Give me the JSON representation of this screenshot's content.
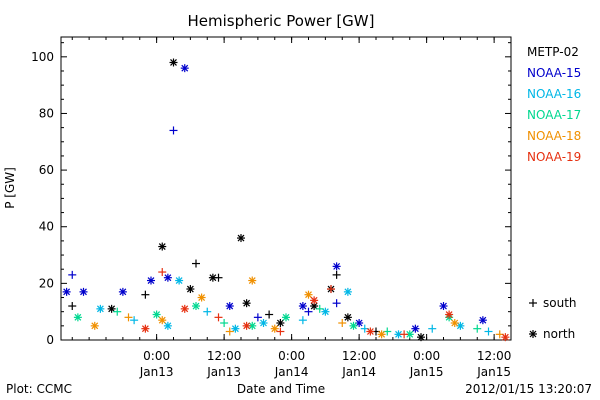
{
  "chart_data": {
    "type": "scatter",
    "title": "Hemispheric Power [GW]",
    "ylabel": "P [GW]",
    "xlabel": "Date and Time",
    "ylim": [
      0,
      107
    ],
    "xlim": [
      "2012-01-12 07:00",
      "2012-01-15 15:00"
    ],
    "y_ticks": [
      0,
      20,
      40,
      60,
      80,
      100
    ],
    "x_ticks": [
      {
        "t": "2012-01-13 00:00",
        "time": "0:00",
        "date": "Jan13"
      },
      {
        "t": "2012-01-13 12:00",
        "time": "12:00",
        "date": "Jan13"
      },
      {
        "t": "2012-01-14 00:00",
        "time": "0:00",
        "date": "Jan14"
      },
      {
        "t": "2012-01-14 12:00",
        "time": "12:00",
        "date": "Jan14"
      },
      {
        "t": "2012-01-15 00:00",
        "time": "0:00",
        "date": "Jan15"
      },
      {
        "t": "2012-01-15 12:00",
        "time": "12:00",
        "date": "Jan15"
      }
    ],
    "grid": false,
    "legend_position": "right",
    "marker_legend": [
      {
        "marker": "+",
        "label": "south"
      },
      {
        "marker": "*",
        "label": "north"
      }
    ],
    "series": [
      {
        "name": "METP-02",
        "color": "#000000",
        "points": [
          {
            "t": "2012-01-13 03:00",
            "y": 98,
            "m": "*"
          },
          {
            "t": "2012-01-13 01:00",
            "y": 33,
            "m": "*"
          },
          {
            "t": "2012-01-13 15:00",
            "y": 36,
            "m": "*"
          },
          {
            "t": "2012-01-13 07:00",
            "y": 27,
            "m": "+"
          },
          {
            "t": "2012-01-13 10:00",
            "y": 22,
            "m": "*"
          },
          {
            "t": "2012-01-13 11:00",
            "y": 22,
            "m": "+"
          },
          {
            "t": "2012-01-13 06:00",
            "y": 18,
            "m": "*"
          },
          {
            "t": "2012-01-12 22:00",
            "y": 16,
            "m": "+"
          },
          {
            "t": "2012-01-12 16:00",
            "y": 11,
            "m": "*"
          },
          {
            "t": "2012-01-13 16:00",
            "y": 13,
            "m": "*"
          },
          {
            "t": "2012-01-14 07:00",
            "y": 18,
            "m": "*"
          },
          {
            "t": "2012-01-14 08:00",
            "y": 23,
            "m": "+"
          },
          {
            "t": "2012-01-14 10:00",
            "y": 8,
            "m": "*"
          },
          {
            "t": "2012-01-13 20:00",
            "y": 9,
            "m": "+"
          },
          {
            "t": "2012-01-14 04:00",
            "y": 12,
            "m": "*"
          },
          {
            "t": "2012-01-14 23:00",
            "y": 1,
            "m": "*"
          },
          {
            "t": "2012-01-14 15:00",
            "y": 3,
            "m": "+"
          },
          {
            "t": "2012-01-12 09:00",
            "y": 12,
            "m": "+"
          },
          {
            "t": "2012-01-13 22:00",
            "y": 6,
            "m": "*"
          }
        ]
      },
      {
        "name": "NOAA-15",
        "color": "#0000cc",
        "points": [
          {
            "t": "2012-01-13 05:00",
            "y": 96,
            "m": "*"
          },
          {
            "t": "2012-01-13 03:00",
            "y": 74,
            "m": "+"
          },
          {
            "t": "2012-01-12 08:00",
            "y": 17,
            "m": "*"
          },
          {
            "t": "2012-01-12 09:00",
            "y": 23,
            "m": "+"
          },
          {
            "t": "2012-01-12 11:00",
            "y": 17,
            "m": "*"
          },
          {
            "t": "2012-01-12 18:00",
            "y": 17,
            "m": "*"
          },
          {
            "t": "2012-01-12 23:00",
            "y": 21,
            "m": "*"
          },
          {
            "t": "2012-01-13 02:00",
            "y": 22,
            "m": "*"
          },
          {
            "t": "2012-01-13 13:00",
            "y": 12,
            "m": "*"
          },
          {
            "t": "2012-01-14 02:00",
            "y": 12,
            "m": "*"
          },
          {
            "t": "2012-01-14 08:00",
            "y": 26,
            "m": "*"
          },
          {
            "t": "2012-01-14 08:00",
            "y": 13,
            "m": "+"
          },
          {
            "t": "2012-01-14 12:00",
            "y": 6,
            "m": "*"
          },
          {
            "t": "2012-01-15 03:00",
            "y": 12,
            "m": "*"
          },
          {
            "t": "2012-01-15 10:00",
            "y": 7,
            "m": "*"
          },
          {
            "t": "2012-01-14 22:00",
            "y": 4,
            "m": "*"
          },
          {
            "t": "2012-01-13 18:00",
            "y": 8,
            "m": "+"
          },
          {
            "t": "2012-01-14 03:00",
            "y": 10,
            "m": "+"
          }
        ]
      },
      {
        "name": "NOAA-16",
        "color": "#00b7e6",
        "points": [
          {
            "t": "2012-01-13 04:00",
            "y": 21,
            "m": "*"
          },
          {
            "t": "2012-01-14 10:00",
            "y": 17,
            "m": "*"
          },
          {
            "t": "2012-01-12 14:00",
            "y": 11,
            "m": "*"
          },
          {
            "t": "2012-01-12 20:00",
            "y": 7,
            "m": "+"
          },
          {
            "t": "2012-01-13 02:00",
            "y": 5,
            "m": "*"
          },
          {
            "t": "2012-01-13 09:00",
            "y": 10,
            "m": "+"
          },
          {
            "t": "2012-01-13 14:00",
            "y": 4,
            "m": "*"
          },
          {
            "t": "2012-01-13 19:00",
            "y": 6,
            "m": "*"
          },
          {
            "t": "2012-01-14 02:00",
            "y": 7,
            "m": "+"
          },
          {
            "t": "2012-01-14 06:00",
            "y": 10,
            "m": "*"
          },
          {
            "t": "2012-01-14 13:00",
            "y": 4,
            "m": "+"
          },
          {
            "t": "2012-01-14 19:00",
            "y": 2,
            "m": "*"
          },
          {
            "t": "2012-01-15 01:00",
            "y": 4,
            "m": "+"
          },
          {
            "t": "2012-01-15 06:00",
            "y": 5,
            "m": "*"
          },
          {
            "t": "2012-01-15 11:00",
            "y": 3,
            "m": "+"
          }
        ]
      },
      {
        "name": "NOAA-17",
        "color": "#00d890",
        "points": [
          {
            "t": "2012-01-12 10:00",
            "y": 8,
            "m": "*"
          },
          {
            "t": "2012-01-12 17:00",
            "y": 10,
            "m": "+"
          },
          {
            "t": "2012-01-13 00:00",
            "y": 9,
            "m": "*"
          },
          {
            "t": "2012-01-13 07:00",
            "y": 12,
            "m": "*"
          },
          {
            "t": "2012-01-13 12:00",
            "y": 6,
            "m": "+"
          },
          {
            "t": "2012-01-13 17:00",
            "y": 5,
            "m": "*"
          },
          {
            "t": "2012-01-13 23:00",
            "y": 8,
            "m": "*"
          },
          {
            "t": "2012-01-14 05:00",
            "y": 11,
            "m": "+"
          },
          {
            "t": "2012-01-14 11:00",
            "y": 5,
            "m": "*"
          },
          {
            "t": "2012-01-14 17:00",
            "y": 3,
            "m": "+"
          },
          {
            "t": "2012-01-14 21:00",
            "y": 2,
            "m": "*"
          },
          {
            "t": "2012-01-15 04:00",
            "y": 8,
            "m": "*"
          },
          {
            "t": "2012-01-15 09:00",
            "y": 4,
            "m": "+"
          }
        ]
      },
      {
        "name": "NOAA-18",
        "color": "#f09000",
        "points": [
          {
            "t": "2012-01-13 17:00",
            "y": 21,
            "m": "*"
          },
          {
            "t": "2012-01-12 13:00",
            "y": 5,
            "m": "*"
          },
          {
            "t": "2012-01-12 19:00",
            "y": 8,
            "m": "+"
          },
          {
            "t": "2012-01-13 01:00",
            "y": 7,
            "m": "*"
          },
          {
            "t": "2012-01-13 08:00",
            "y": 15,
            "m": "*"
          },
          {
            "t": "2012-01-13 13:00",
            "y": 3,
            "m": "+"
          },
          {
            "t": "2012-01-13 21:00",
            "y": 4,
            "m": "*"
          },
          {
            "t": "2012-01-14 03:00",
            "y": 16,
            "m": "*"
          },
          {
            "t": "2012-01-14 09:00",
            "y": 6,
            "m": "+"
          },
          {
            "t": "2012-01-14 16:00",
            "y": 2,
            "m": "*"
          },
          {
            "t": "2012-01-15 05:00",
            "y": 6,
            "m": "*"
          },
          {
            "t": "2012-01-15 13:00",
            "y": 2,
            "m": "+"
          }
        ]
      },
      {
        "name": "NOAA-19",
        "color": "#e63010",
        "points": [
          {
            "t": "2012-01-12 22:00",
            "y": 4,
            "m": "*"
          },
          {
            "t": "2012-01-13 01:00",
            "y": 24,
            "m": "+"
          },
          {
            "t": "2012-01-13 05:00",
            "y": 11,
            "m": "*"
          },
          {
            "t": "2012-01-13 11:00",
            "y": 8,
            "m": "+"
          },
          {
            "t": "2012-01-13 16:00",
            "y": 5,
            "m": "*"
          },
          {
            "t": "2012-01-13 22:00",
            "y": 3,
            "m": "+"
          },
          {
            "t": "2012-01-14 04:00",
            "y": 14,
            "m": "*"
          },
          {
            "t": "2012-01-14 07:00",
            "y": 18,
            "m": "+"
          },
          {
            "t": "2012-01-14 14:00",
            "y": 3,
            "m": "*"
          },
          {
            "t": "2012-01-14 20:00",
            "y": 2,
            "m": "+"
          },
          {
            "t": "2012-01-15 04:00",
            "y": 9,
            "m": "*"
          },
          {
            "t": "2012-01-15 14:00",
            "y": 1,
            "m": "*"
          }
        ]
      }
    ]
  },
  "footer": {
    "left": "Plot: CCMC",
    "center": "Date and Time",
    "right": "2012/01/15 13:20:07"
  }
}
